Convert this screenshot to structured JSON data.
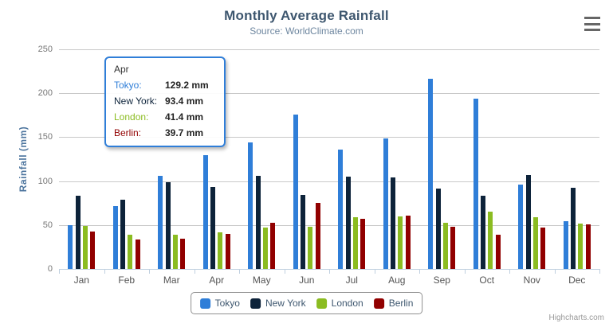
{
  "chart_data": {
    "type": "bar",
    "title": "Monthly Average Rainfall",
    "subtitle": "Source: WorldClimate.com",
    "xlabel": "",
    "ylabel": "Rainfall (mm)",
    "ylim": [
      0,
      250
    ],
    "ytick_interval": 50,
    "grid": true,
    "legend_position": "bottom",
    "categories": [
      "Jan",
      "Feb",
      "Mar",
      "Apr",
      "May",
      "Jun",
      "Jul",
      "Aug",
      "Sep",
      "Oct",
      "Nov",
      "Dec"
    ],
    "series": [
      {
        "name": "Tokyo",
        "color": "#2f7ed8",
        "values": [
          49.9,
          71.5,
          106.4,
          129.2,
          144.0,
          176.0,
          135.6,
          148.5,
          216.4,
          194.1,
          95.6,
          54.4
        ]
      },
      {
        "name": "New York",
        "color": "#0d233a",
        "values": [
          83.6,
          78.8,
          98.5,
          93.4,
          106.0,
          84.5,
          105.0,
          104.3,
          91.2,
          83.5,
          106.6,
          92.3
        ]
      },
      {
        "name": "London",
        "color": "#8bbc21",
        "values": [
          48.9,
          38.8,
          39.3,
          41.4,
          47.0,
          48.3,
          59.0,
          59.6,
          52.4,
          65.2,
          59.3,
          51.2
        ]
      },
      {
        "name": "Berlin",
        "color": "#910000",
        "values": [
          42.4,
          33.2,
          34.5,
          39.7,
          52.6,
          75.5,
          57.4,
          60.4,
          47.6,
          39.1,
          46.8,
          51.1
        ]
      }
    ]
  },
  "tooltip": {
    "header": "Apr",
    "border_color": "#2f7ed8",
    "rows": [
      {
        "label": "Tokyo:",
        "value": "129.2 mm",
        "color": "#2f7ed8"
      },
      {
        "label": "New York:",
        "value": "93.4 mm",
        "color": "#0d233a"
      },
      {
        "label": "London:",
        "value": "41.4 mm",
        "color": "#8bbc21"
      },
      {
        "label": "Berlin:",
        "value": "39.7 mm",
        "color": "#910000"
      }
    ]
  },
  "credit": {
    "label": "Highcharts.com"
  },
  "colors": {
    "title": "#3E576F",
    "subtitle": "#6D869F",
    "axis_title": "#4D759E",
    "gridline": "#C8C8C8",
    "axis_line": "#C0D0E0",
    "legend_border": "#909090"
  }
}
